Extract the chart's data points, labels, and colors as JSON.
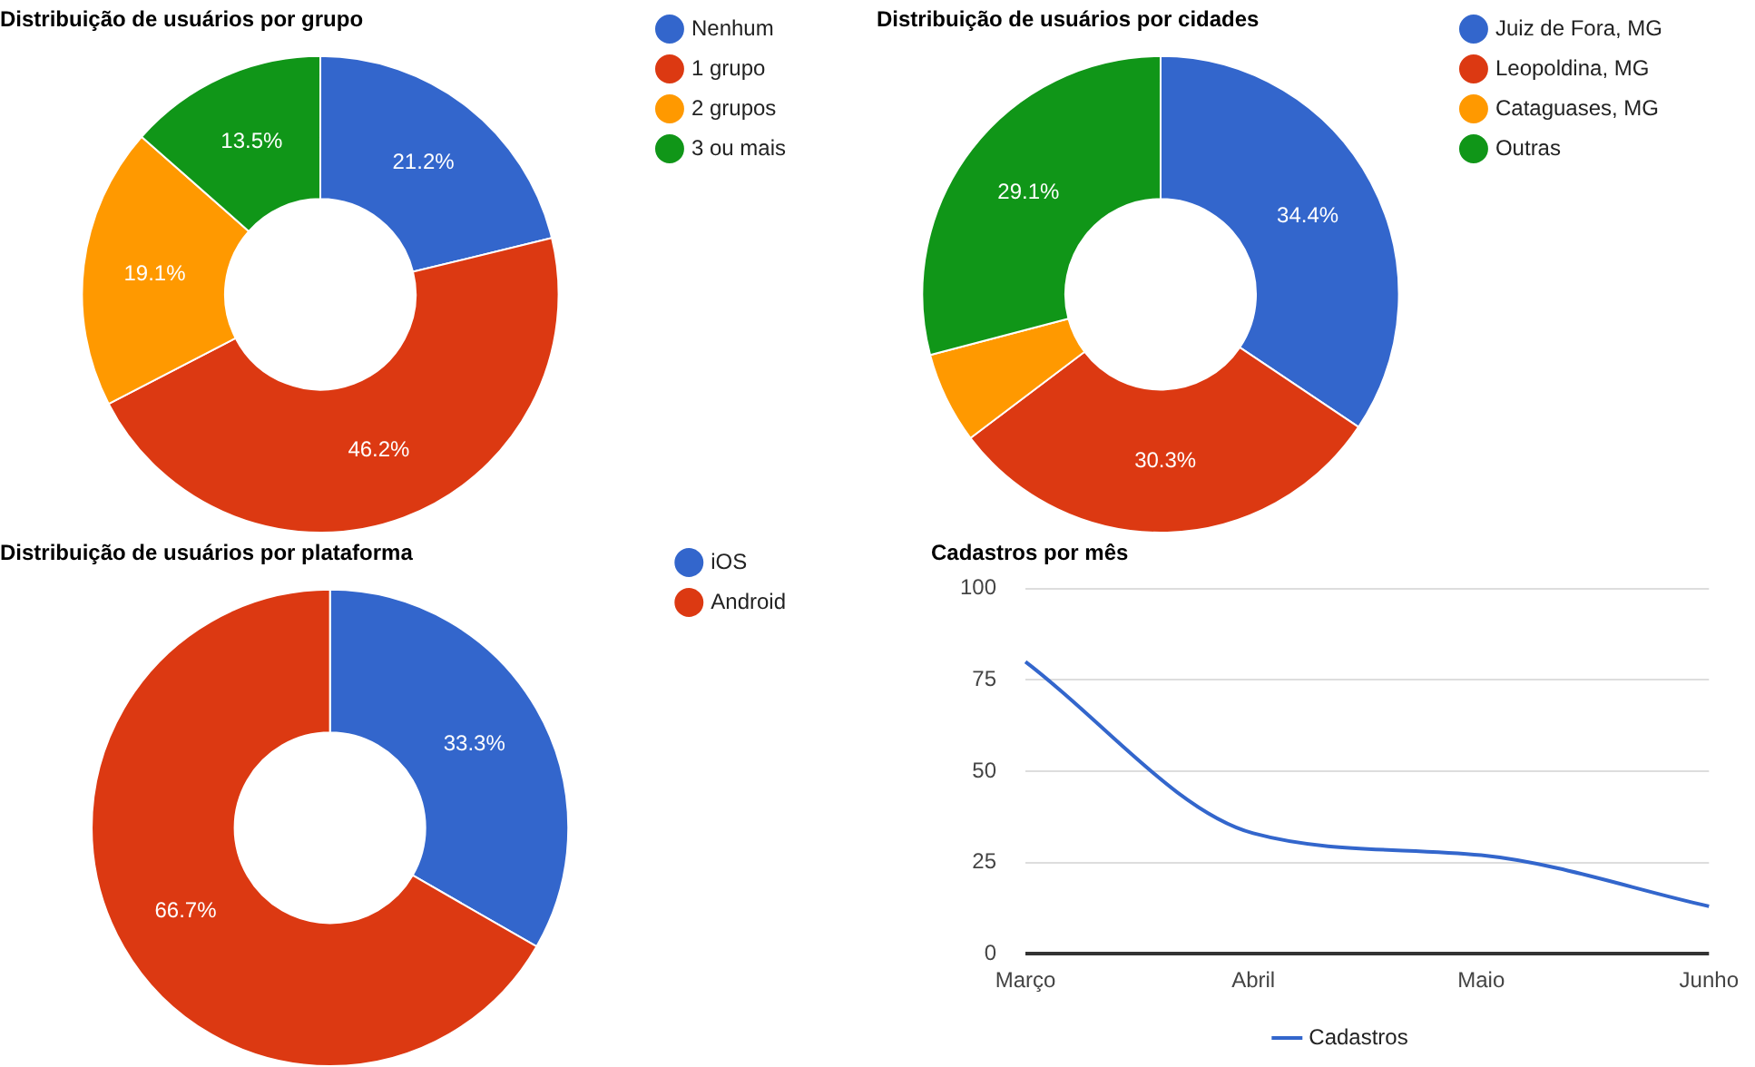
{
  "chart_data": [
    {
      "type": "donut",
      "title": "Distribuição de usuários por grupo",
      "categories": [
        "Nenhum",
        "1 grupo",
        "2 grupos",
        "3 ou mais"
      ],
      "values": [
        21.2,
        46.2,
        19.1,
        13.5
      ],
      "colors": [
        "#3366cc",
        "#dc3912",
        "#ff9900",
        "#109618"
      ],
      "value_labels": [
        "21.2%",
        "46.2%",
        "19.1%",
        "13.5%"
      ],
      "legend": "right"
    },
    {
      "type": "donut",
      "title": "Distribuição de usuários por cidades",
      "categories": [
        "Juiz de Fora, MG",
        "Leopoldina, MG",
        "Cataguases, MG",
        "Outras"
      ],
      "values": [
        34.4,
        30.3,
        6.2,
        29.1
      ],
      "colors": [
        "#3366cc",
        "#dc3912",
        "#ff9900",
        "#109618"
      ],
      "value_labels": [
        "34.4%",
        "30.3%",
        null,
        "29.1%"
      ],
      "legend": "right"
    },
    {
      "type": "donut",
      "title": "Distribuição de usuários por plataforma",
      "categories": [
        "iOS",
        "Android"
      ],
      "values": [
        33.3,
        66.7
      ],
      "colors": [
        "#3366cc",
        "#dc3912"
      ],
      "value_labels": [
        "33.3%",
        "66.7%"
      ],
      "legend": "right"
    },
    {
      "type": "line",
      "title": "Cadastros por mês",
      "categories": [
        "Março",
        "Abril",
        "Maio",
        "Junho"
      ],
      "series": [
        {
          "name": "Cadastros",
          "color": "#3366cc",
          "values": [
            80,
            33,
            27,
            13
          ]
        }
      ],
      "ylim": [
        0,
        100
      ],
      "yticks": [
        0,
        25,
        50,
        75,
        100
      ],
      "grid": "y",
      "legend": "bottom",
      "marker": "none",
      "line_style": "solid"
    }
  ]
}
